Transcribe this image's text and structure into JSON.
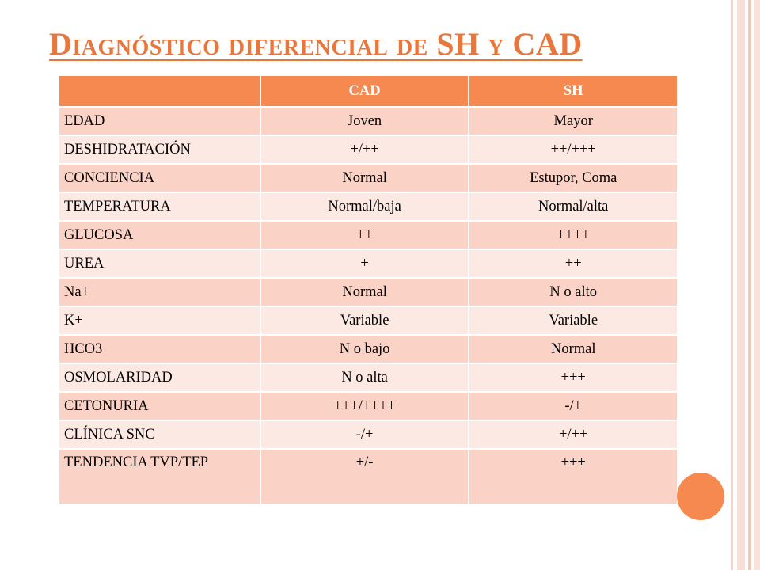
{
  "slide": {
    "title": "Diagnóstico diferencial de SH y CAD"
  },
  "table": {
    "headers": [
      "",
      "CAD",
      "SH"
    ],
    "rows": [
      [
        "EDAD",
        "Joven",
        "Mayor"
      ],
      [
        "DESHIDRATACIÓN",
        "+/++",
        "++/+++"
      ],
      [
        "CONCIENCIA",
        "Normal",
        "Estupor, Coma"
      ],
      [
        "TEMPERATURA",
        "Normal/baja",
        "Normal/alta"
      ],
      [
        "GLUCOSA",
        "++",
        "++++"
      ],
      [
        "UREA",
        "+",
        "++"
      ],
      [
        "Na+",
        "Normal",
        "N o alto"
      ],
      [
        "K+",
        "Variable",
        "Variable"
      ],
      [
        "HCO3",
        "N o bajo",
        "Normal"
      ],
      [
        "OSMOLARIDAD",
        "N o alta",
        "+++"
      ],
      [
        "CETONURIA",
        "+++/++++",
        "-/+"
      ],
      [
        "CLÍNICA SNC",
        "-/+",
        "+/++"
      ],
      [
        "TENDENCIA TVP/TEP",
        "+/-",
        "+++"
      ]
    ]
  },
  "colors": {
    "accent": "#f5894f",
    "title": "#e8773e",
    "row_dark": "#fbd3c6",
    "row_light": "#fde9e3"
  }
}
